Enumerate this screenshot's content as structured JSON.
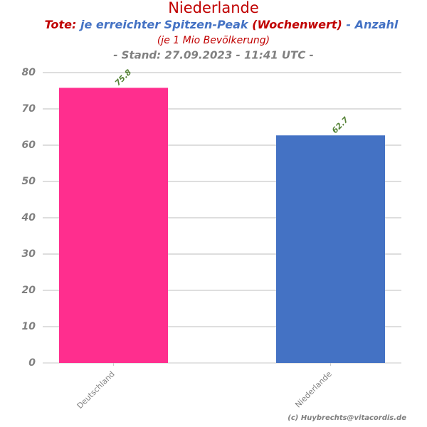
{
  "chart_data": {
    "type": "bar",
    "title": "Niederlande",
    "subtitle_parts": [
      {
        "text": "Tote:",
        "color": "#c00000"
      },
      {
        "text": "je erreichter Spitzen-Peak",
        "color": "#4472c4"
      },
      {
        "text": "(Wochenwert)",
        "color": "#c00000"
      },
      {
        "text": "- Anzahl",
        "color": "#4472c4"
      }
    ],
    "subtitle2": "(je 1 Mio Bevölkerung)",
    "subtitle3": "- Stand: 27.09.2023 - 11:41 UTC -",
    "credit": "(c) Huybrechts@vitacordis.de",
    "categories": [
      "Deutschland",
      "Niederlande"
    ],
    "values": [
      75.8,
      62.7
    ],
    "colors": [
      "#ff2e8e",
      "#4472c4"
    ],
    "label_color": "#548235",
    "ylim": [
      0,
      80
    ],
    "yticks": [
      0,
      10,
      20,
      30,
      40,
      50,
      60,
      70,
      80
    ],
    "grid": true
  }
}
